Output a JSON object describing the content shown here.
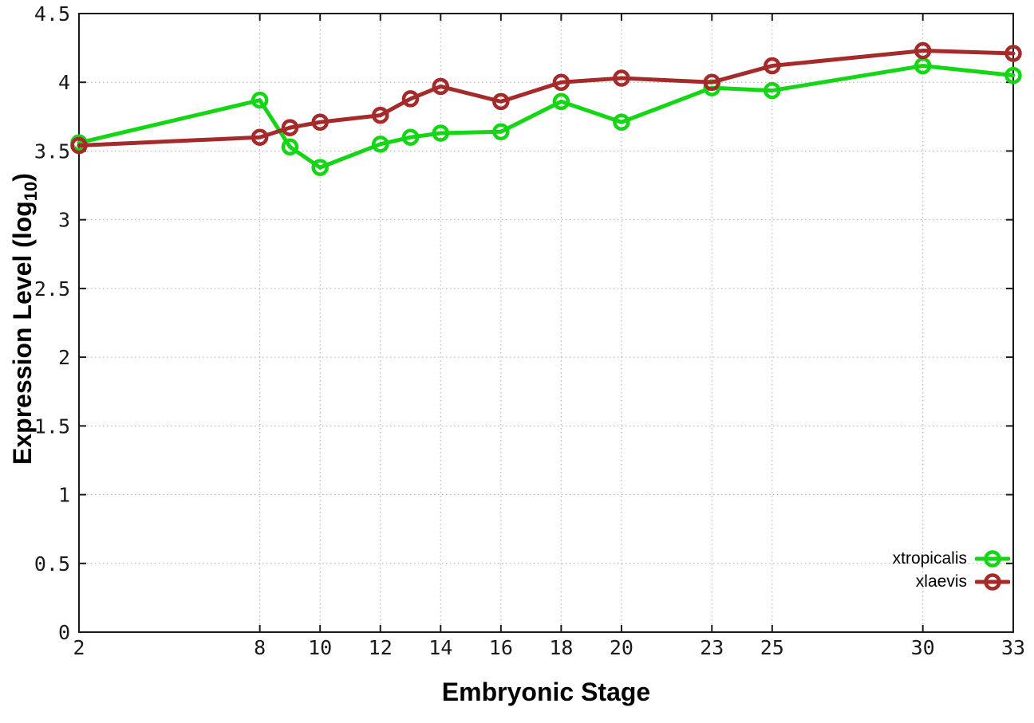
{
  "chart_data": {
    "type": "line",
    "title": "",
    "xlabel": "Embryonic Stage",
    "ylabel": "Expression Level (log10)",
    "ylabel_main": "Expression Level (log",
    "ylabel_sub": "10",
    "ylabel_end": ")",
    "xlim": [
      2,
      33
    ],
    "ylim": [
      0,
      4.5
    ],
    "x_ticks": [
      2,
      8,
      10,
      12,
      14,
      16,
      18,
      20,
      23,
      25,
      30,
      33
    ],
    "y_ticks": [
      0,
      0.5,
      1,
      1.5,
      2,
      2.5,
      3,
      3.5,
      4,
      4.5
    ],
    "grid": true,
    "legend_position": "bottom-right",
    "categories": [
      2,
      8,
      9,
      10,
      12,
      13,
      14,
      16,
      18,
      20,
      23,
      25,
      30,
      33
    ],
    "series": [
      {
        "name": "xtropicalis",
        "color": "#15d615",
        "x": [
          2,
          8,
          9,
          10,
          12,
          13,
          14,
          16,
          18,
          20,
          23,
          25,
          30,
          33
        ],
        "values": [
          3.56,
          3.87,
          3.53,
          3.38,
          3.55,
          3.6,
          3.63,
          3.64,
          3.86,
          3.71,
          3.96,
          3.94,
          4.12,
          4.05
        ]
      },
      {
        "name": "xlaevis",
        "color": "#a52a2a",
        "x": [
          2,
          8,
          9,
          10,
          12,
          13,
          14,
          16,
          18,
          20,
          23,
          25,
          30,
          33
        ],
        "values": [
          3.54,
          3.6,
          3.67,
          3.71,
          3.76,
          3.88,
          3.97,
          3.86,
          4.0,
          4.03,
          4.0,
          4.12,
          4.23,
          4.21
        ]
      }
    ]
  }
}
